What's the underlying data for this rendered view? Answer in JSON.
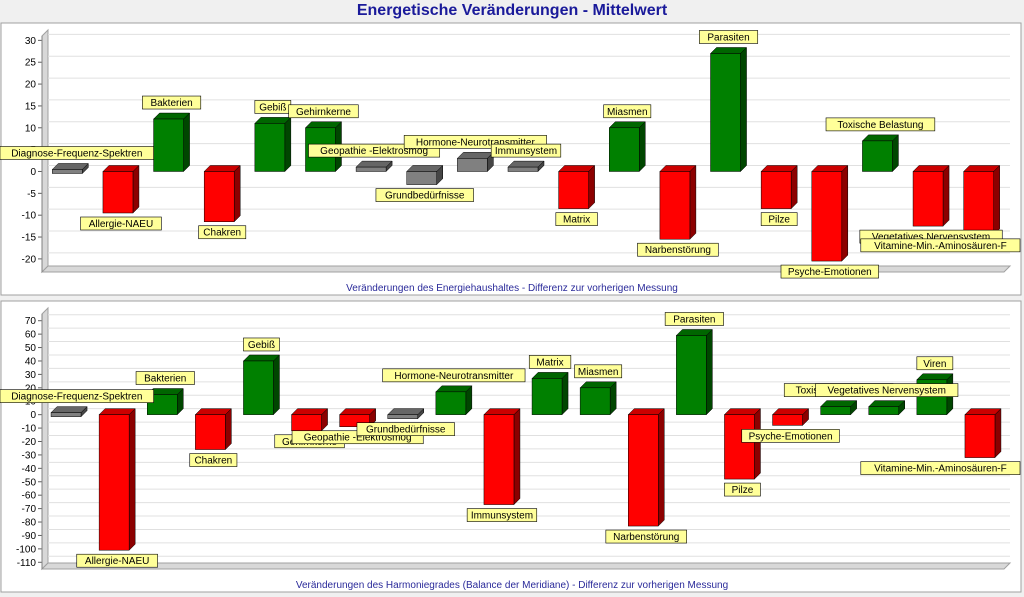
{
  "title": "Energetische Veränderungen - Mittelwert",
  "colors": {
    "positive": "#008000",
    "negative": "#ff0000",
    "neutral": "#808080",
    "label_bg": "#ffff99",
    "title": "#1a1a9a"
  },
  "chart_data": [
    {
      "type": "bar",
      "caption": "Veränderungen des Energiehaushaltes - Differenz zur vorherigen Messung",
      "ylim": [
        -23,
        31
      ],
      "yticks": [
        30,
        25,
        20,
        15,
        10,
        5,
        0,
        -5,
        -10,
        -15,
        -20
      ],
      "grid": true,
      "categories": [
        "Diagnose-Frequenz-Spektren",
        "Allergie-NAEU",
        "Bakterien",
        "Chakren",
        "Gebiß",
        "Gehirnkerne",
        "Geopathie -Elektrosmog",
        "Grundbedürfnisse",
        "Hormone-Neurotransmitter",
        "Immunsystem",
        "Matrix",
        "Miasmen",
        "Narbenstörung",
        "Parasiten",
        "Pilze",
        "Psyche-Emotionen",
        "Toxische Belastung",
        "Vegetatives Nervensystem",
        "Vitamine-Min.-Aminosäuren-F"
      ],
      "values": [
        0,
        -9.5,
        12,
        -11.5,
        11,
        10,
        1,
        -3,
        3,
        1,
        -8.5,
        10,
        -15.5,
        27,
        -8.5,
        -20.5,
        7,
        -12.5,
        -14.5
      ]
    },
    {
      "type": "bar",
      "caption": "Veränderungen des Harmoniegrades (Balance der Meridiane) - Differenz zur vorherigen Messung",
      "ylim": [
        -115,
        75
      ],
      "yticks": [
        70,
        60,
        50,
        40,
        30,
        20,
        10,
        0,
        -10,
        -20,
        -30,
        -40,
        -50,
        -60,
        -70,
        -80,
        -90,
        -100,
        -110
      ],
      "grid": true,
      "categories": [
        "Diagnose-Frequenz-Spektren",
        "Allergie-NAEU",
        "Bakterien",
        "Chakren",
        "Gebiß",
        "Gehirnkerne",
        "Geopathie -Elektrosmog",
        "Grundbedürfnisse",
        "Hormone-Neurotransmitter",
        "Immunsystem",
        "Matrix",
        "Miasmen",
        "Narbenstörung",
        "Parasiten",
        "Pilze",
        "Psyche-Emotionen",
        "Toxische Belastung",
        "Vegetatives Nervensystem",
        "Viren",
        "Vitamine-Min.-Aminosäuren-F"
      ],
      "values": [
        0,
        -101,
        15,
        -26,
        40,
        -12,
        -9,
        -3,
        17,
        -67,
        27,
        20,
        -83,
        59,
        -48,
        -8,
        6,
        6,
        26,
        -32
      ]
    }
  ]
}
